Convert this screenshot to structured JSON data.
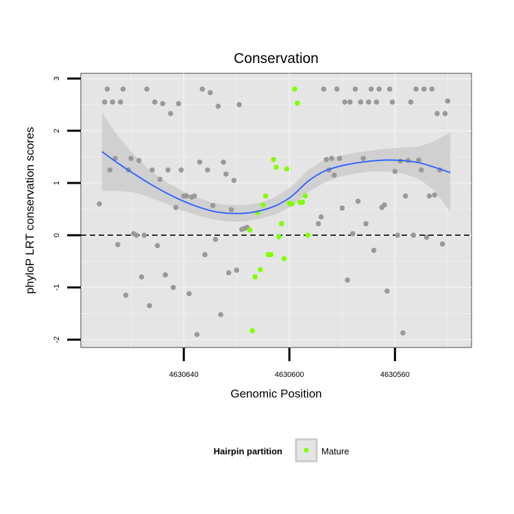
{
  "chart_data": {
    "type": "scatter",
    "title": "Conservation",
    "xlabel": "Genomic Position",
    "ylabel": "phyloP LRT conservation scores",
    "x_reversed": true,
    "xlim": [
      4630679,
      4630531
    ],
    "ylim": [
      -2.15,
      3.1
    ],
    "x_ticks": [
      4630640,
      4630600,
      4630560
    ],
    "x_tick_labels": [
      "4630640",
      "4630600",
      "4630560"
    ],
    "y_ticks": [
      -2,
      -1,
      0,
      1,
      2,
      3
    ],
    "y_tick_labels": [
      "-2",
      "-1",
      "0",
      "1",
      "2",
      "3"
    ],
    "reference_line": {
      "y": 0,
      "style": "dashed"
    },
    "grid": true,
    "legend": {
      "title": "Hairpin partition",
      "placement": "bottom",
      "entries": [
        "Mature"
      ]
    },
    "colors": {
      "background": "#e5e5e5",
      "grid": "#f2f2f2",
      "point": "#999999",
      "mature": "#7fff00",
      "smooth": "#3366ff",
      "ribbon": "#cccccc"
    },
    "series": [
      {
        "partition": "other",
        "points": [
          [
            4630672,
            0.6
          ],
          [
            4630670,
            2.55
          ],
          [
            4630669,
            2.8
          ],
          [
            4630668,
            1.25
          ],
          [
            4630667,
            2.55
          ],
          [
            4630666,
            1.47
          ],
          [
            4630665,
            -0.18
          ],
          [
            4630664,
            2.55
          ],
          [
            4630663,
            2.8
          ],
          [
            4630662,
            -1.15
          ],
          [
            4630661,
            1.25
          ],
          [
            4630660,
            1.47
          ],
          [
            4630659,
            0.03
          ],
          [
            4630658,
            0.0
          ],
          [
            4630657,
            1.43
          ],
          [
            4630656,
            -0.8
          ],
          [
            4630655,
            0.0
          ],
          [
            4630654,
            2.8
          ],
          [
            4630653,
            -1.35
          ],
          [
            4630652,
            1.25
          ],
          [
            4630651,
            2.55
          ],
          [
            4630650,
            -0.2
          ],
          [
            4630649,
            1.07
          ],
          [
            4630648,
            2.52
          ],
          [
            4630647,
            -0.76
          ],
          [
            4630646,
            1.25
          ],
          [
            4630645,
            2.33
          ],
          [
            4630644,
            -1.0
          ],
          [
            4630643,
            0.53
          ],
          [
            4630642,
            2.52
          ],
          [
            4630641,
            1.25
          ],
          [
            4630640,
            0.75
          ],
          [
            4630639,
            0.75
          ],
          [
            4630638,
            -1.12
          ],
          [
            4630637,
            0.73
          ],
          [
            4630636,
            0.75
          ],
          [
            4630635,
            -1.9
          ],
          [
            4630634,
            1.4
          ],
          [
            4630633,
            2.8
          ],
          [
            4630632,
            -0.37
          ],
          [
            4630631,
            1.25
          ],
          [
            4630630,
            2.73
          ],
          [
            4630629,
            0.57
          ],
          [
            4630628,
            -0.08
          ],
          [
            4630627,
            2.47
          ],
          [
            4630626,
            -1.52
          ],
          [
            4630625,
            1.4
          ],
          [
            4630624,
            1.17
          ],
          [
            4630623,
            -0.72
          ],
          [
            4630622,
            0.49
          ],
          [
            4630621,
            1.05
          ],
          [
            4630620,
            -0.67
          ],
          [
            4630619,
            2.5
          ],
          [
            4630618,
            0.11
          ],
          [
            4630617,
            0.13
          ],
          [
            4630616,
            0.15
          ],
          [
            4630589,
            0.22
          ],
          [
            4630588,
            0.35
          ],
          [
            4630587,
            2.8
          ],
          [
            4630586,
            1.45
          ],
          [
            4630585,
            1.25
          ],
          [
            4630584,
            1.47
          ],
          [
            4630583,
            1.15
          ],
          [
            4630582,
            2.8
          ],
          [
            4630581,
            1.47
          ],
          [
            4630580,
            0.52
          ],
          [
            4630579,
            2.55
          ],
          [
            4630578,
            -0.86
          ],
          [
            4630577,
            2.55
          ],
          [
            4630576,
            0.03
          ],
          [
            4630575,
            2.8
          ],
          [
            4630574,
            0.65
          ],
          [
            4630573,
            2.55
          ],
          [
            4630572,
            1.47
          ],
          [
            4630571,
            0.22
          ],
          [
            4630570,
            2.55
          ],
          [
            4630569,
            2.8
          ],
          [
            4630568,
            -0.29
          ],
          [
            4630567,
            2.55
          ],
          [
            4630566,
            2.8
          ],
          [
            4630565,
            0.53
          ],
          [
            4630564,
            0.58
          ],
          [
            4630563,
            -1.07
          ],
          [
            4630562,
            2.8
          ],
          [
            4630561,
            2.55
          ],
          [
            4630560,
            1.22
          ],
          [
            4630559,
            0.0
          ],
          [
            4630558,
            1.42
          ],
          [
            4630557,
            -1.87
          ],
          [
            4630556,
            0.75
          ],
          [
            4630555,
            1.43
          ],
          [
            4630554,
            2.55
          ],
          [
            4630553,
            0.0
          ],
          [
            4630552,
            2.8
          ],
          [
            4630551,
            1.44
          ],
          [
            4630550,
            1.25
          ],
          [
            4630549,
            2.8
          ],
          [
            4630548,
            -0.04
          ],
          [
            4630547,
            0.75
          ],
          [
            4630546,
            2.8
          ],
          [
            4630545,
            0.77
          ],
          [
            4630544,
            2.33
          ],
          [
            4630543,
            1.25
          ],
          [
            4630542,
            -0.17
          ],
          [
            4630541,
            2.33
          ],
          [
            4630540,
            2.57
          ]
        ]
      },
      {
        "partition": "Mature",
        "points": [
          [
            4630615,
            0.1
          ],
          [
            4630614,
            -1.83
          ],
          [
            4630613,
            -0.8
          ],
          [
            4630612,
            0.43
          ],
          [
            4630611,
            -0.66
          ],
          [
            4630610,
            0.58
          ],
          [
            4630609,
            0.75
          ],
          [
            4630608,
            -0.37
          ],
          [
            4630607,
            -0.37
          ],
          [
            4630606,
            1.45
          ],
          [
            4630605,
            1.3
          ],
          [
            4630604,
            -0.03
          ],
          [
            4630603,
            0.22
          ],
          [
            4630602,
            -0.45
          ],
          [
            4630601,
            1.27
          ],
          [
            4630600,
            0.61
          ],
          [
            4630599,
            0.6
          ],
          [
            4630598,
            2.8
          ],
          [
            4630597,
            2.53
          ],
          [
            4630596,
            0.63
          ],
          [
            4630595,
            0.63
          ],
          [
            4630594,
            0.75
          ],
          [
            4630593,
            0.0
          ]
        ]
      }
    ],
    "smooth": [
      {
        "x": 4630671,
        "y": 1.6,
        "lo": 0.85,
        "hi": 2.35
      },
      {
        "x": 4630665,
        "y": 1.38,
        "lo": 0.85,
        "hi": 1.9
      },
      {
        "x": 4630659,
        "y": 1.18,
        "lo": 0.82,
        "hi": 1.55
      },
      {
        "x": 4630653,
        "y": 0.99,
        "lo": 0.73,
        "hi": 1.25
      },
      {
        "x": 4630647,
        "y": 0.82,
        "lo": 0.61,
        "hi": 1.03
      },
      {
        "x": 4630641,
        "y": 0.67,
        "lo": 0.48,
        "hi": 0.86
      },
      {
        "x": 4630635,
        "y": 0.55,
        "lo": 0.38,
        "hi": 0.72
      },
      {
        "x": 4630629,
        "y": 0.46,
        "lo": 0.3,
        "hi": 0.62
      },
      {
        "x": 4630623,
        "y": 0.42,
        "lo": 0.26,
        "hi": 0.58
      },
      {
        "x": 4630617,
        "y": 0.42,
        "lo": 0.26,
        "hi": 0.58
      },
      {
        "x": 4630611,
        "y": 0.47,
        "lo": 0.32,
        "hi": 0.62
      },
      {
        "x": 4630605,
        "y": 0.57,
        "lo": 0.4,
        "hi": 0.74
      },
      {
        "x": 4630599,
        "y": 0.75,
        "lo": 0.56,
        "hi": 0.94
      },
      {
        "x": 4630593,
        "y": 1.03,
        "lo": 0.82,
        "hi": 1.24
      },
      {
        "x": 4630587,
        "y": 1.22,
        "lo": 1.0,
        "hi": 1.44
      },
      {
        "x": 4630581,
        "y": 1.32,
        "lo": 1.12,
        "hi": 1.52
      },
      {
        "x": 4630575,
        "y": 1.38,
        "lo": 1.18,
        "hi": 1.58
      },
      {
        "x": 4630569,
        "y": 1.42,
        "lo": 1.22,
        "hi": 1.62
      },
      {
        "x": 4630563,
        "y": 1.44,
        "lo": 1.22,
        "hi": 1.66
      },
      {
        "x": 4630557,
        "y": 1.43,
        "lo": 1.18,
        "hi": 1.68
      },
      {
        "x": 4630551,
        "y": 1.39,
        "lo": 1.08,
        "hi": 1.7
      },
      {
        "x": 4630545,
        "y": 1.3,
        "lo": 0.85,
        "hi": 1.8
      },
      {
        "x": 4630539,
        "y": 1.2,
        "lo": 0.45,
        "hi": 1.97
      }
    ]
  }
}
